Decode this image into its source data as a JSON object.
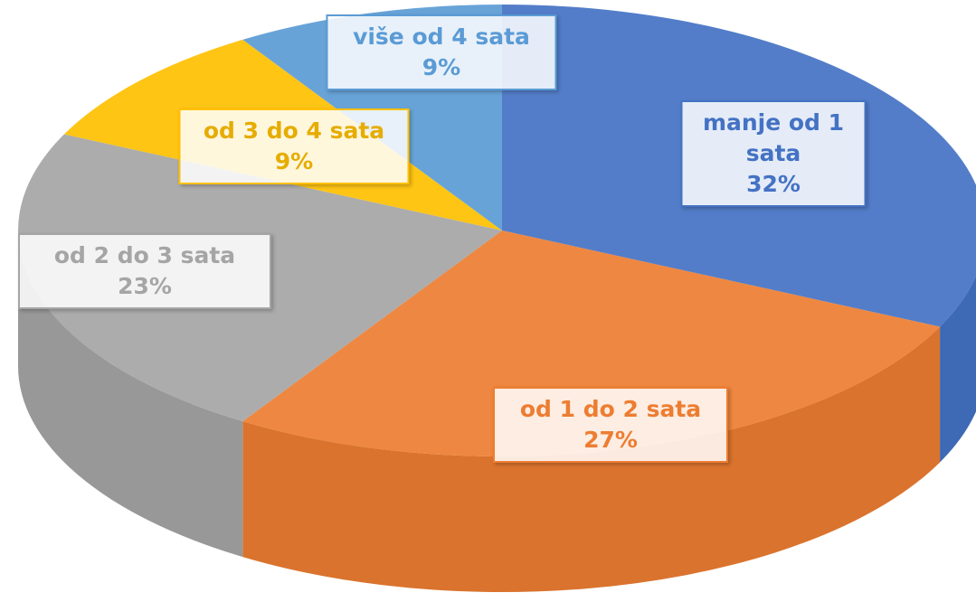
{
  "chart_data": {
    "type": "pie",
    "categories": [
      "manje od 1 sata",
      "od 1 do 2 sata",
      "od 2 do 3 sata",
      "od 3 do 4 sata",
      "više od 4 sata"
    ],
    "values": [
      32,
      27,
      23,
      9,
      9
    ],
    "value_labels": [
      "32%",
      "27%",
      "23%",
      "9%",
      "9%"
    ],
    "colors": [
      "#4472c4",
      "#ed7d31",
      "#a5a5a5",
      "#ffc000",
      "#5b9bd5"
    ]
  }
}
